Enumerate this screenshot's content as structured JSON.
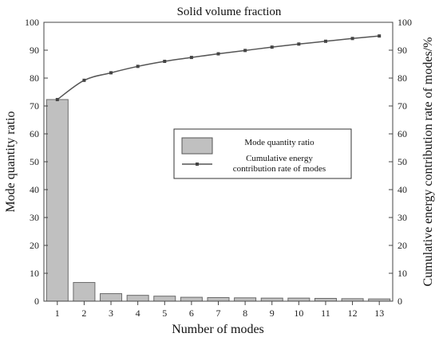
{
  "chart_data": {
    "type": "bar+line",
    "title": "Solid volume fraction",
    "xlabel": "Number of modes",
    "ylabel_left": "Mode quantity ratio",
    "ylabel_right": "Cumulative energy contribution rate of modes/%",
    "categories": [
      "1",
      "2",
      "3",
      "4",
      "5",
      "6",
      "7",
      "8",
      "9",
      "10",
      "11",
      "12",
      "13"
    ],
    "ylim_left": [
      0,
      100
    ],
    "ylim_right": [
      0,
      100
    ],
    "yticks": [
      "0",
      "10",
      "20",
      "30",
      "40",
      "50",
      "60",
      "70",
      "80",
      "90",
      "100"
    ],
    "series": [
      {
        "name": "Mode quantity ratio",
        "type": "bar",
        "axis": "left",
        "color": "#c0c0c0",
        "values": [
          72.3,
          6.7,
          2.7,
          2.1,
          1.8,
          1.4,
          1.3,
          1.2,
          1.1,
          1.1,
          1.0,
          0.9,
          0.8
        ]
      },
      {
        "name": "Cumulative energy contribution rate of modes",
        "type": "line",
        "axis": "right",
        "color": "#555555",
        "values": [
          72.3,
          79.2,
          81.9,
          84.2,
          86.0,
          87.4,
          88.7,
          89.9,
          91.1,
          92.2,
          93.2,
          94.2,
          95.1
        ]
      }
    ],
    "legend": {
      "placement": "center-right",
      "bar_label": "Mode quantity ratio",
      "line_label_line1": "Cumulative energy",
      "line_label_line2": "contribution rate of modes"
    },
    "grid": false
  }
}
